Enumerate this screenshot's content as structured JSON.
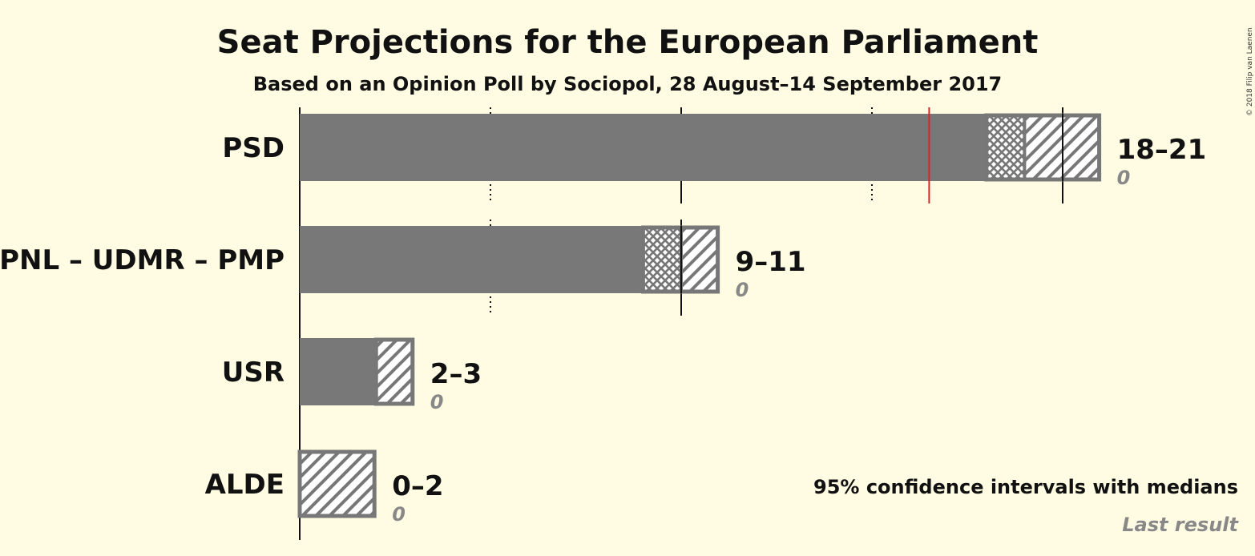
{
  "chart_data": {
    "type": "bar",
    "title": "Seat Projections for the European Parliament",
    "subtitle": "Based on an Opinion Poll by Sociopol, 28 August–14 September 2017",
    "xlim": [
      0,
      21
    ],
    "gridlines": {
      "solid": [
        10,
        20
      ],
      "dotted": [
        5,
        15
      ]
    },
    "majority": 16.5,
    "parties": [
      {
        "name": "PSD",
        "range_label": "18–21",
        "last_label": "0",
        "low": 18,
        "median": 19,
        "high": 21,
        "last": 0
      },
      {
        "name": "PNL – UDMR – PMP",
        "range_label": "9–11",
        "last_label": "0",
        "low": 9,
        "median": 10,
        "high": 11,
        "last": 0
      },
      {
        "name": "USR",
        "range_label": "2–3",
        "last_label": "0",
        "low": 2,
        "median": 2,
        "high": 3,
        "last": 0
      },
      {
        "name": "ALDE",
        "range_label": "0–2",
        "last_label": "0",
        "low": 0,
        "median": 0,
        "high": 2,
        "last": 0
      }
    ],
    "legend": {
      "ci_text": "95% confidence intervals with medians",
      "last_text": "Last result"
    }
  },
  "copyright": "© 2018 Filip van Laenen",
  "colors": {
    "background": "#fffce3",
    "bar": "#787878",
    "outline": "#777777",
    "majority_line": "#dd2222",
    "text": "#111111",
    "muted": "#888888"
  }
}
